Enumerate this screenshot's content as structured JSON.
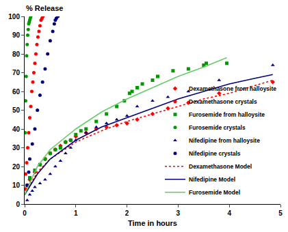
{
  "chart_data": {
    "type": "scatter",
    "xlabel": "Time in hours",
    "ylabel": "% Release",
    "xlim": [
      0,
      5
    ],
    "xticks": [
      0,
      1,
      2,
      3,
      4,
      5
    ],
    "ylim": [
      0,
      100
    ],
    "yticks": [
      0,
      10,
      20,
      30,
      40,
      50,
      60,
      70,
      80,
      90,
      100
    ],
    "grid": false,
    "legend": "lower right",
    "series": [
      {
        "name": "Dexamethasone from halloysite",
        "type": "scatter",
        "color": "#ff0000",
        "marker": "diamond",
        "x": [
          0.02,
          0.05,
          0.1,
          0.2,
          0.3,
          0.4,
          0.5,
          0.6,
          0.7,
          0.8,
          0.9,
          1.0,
          1.2,
          1.4,
          1.6,
          1.8,
          2.0,
          2.2,
          2.5,
          2.8,
          3.2,
          3.8,
          4.85
        ],
        "values": [
          8,
          10,
          13,
          17,
          21,
          24,
          27,
          29,
          31,
          33,
          34,
          36,
          38,
          40,
          41,
          42,
          43,
          45,
          48,
          51,
          54,
          59,
          65
        ]
      },
      {
        "name": "Dexamethasone crystals",
        "type": "scatter",
        "color": "#ff0000",
        "marker": "circle",
        "x": [
          0.02,
          0.04,
          0.06,
          0.08,
          0.1,
          0.12,
          0.14,
          0.16,
          0.18,
          0.2,
          0.22,
          0.24,
          0.26,
          0.28,
          0.3,
          0.32,
          0.34,
          0.36
        ],
        "values": [
          16,
          22,
          30,
          38,
          46,
          52,
          60,
          65,
          70,
          75,
          80,
          85,
          89,
          92,
          95,
          98,
          99,
          100
        ]
      },
      {
        "name": "Furosemide from halloysite",
        "type": "scatter",
        "color": "#009900",
        "marker": "square",
        "x": [
          0.05,
          0.1,
          0.2,
          0.3,
          0.4,
          0.5,
          0.6,
          0.7,
          0.8,
          0.9,
          1.0,
          1.1,
          1.2,
          1.4,
          1.6,
          1.8,
          1.95,
          2.05,
          2.1,
          2.2,
          2.3,
          2.5,
          2.6,
          2.9,
          3.2,
          3.5,
          3.55,
          3.95
        ],
        "values": [
          10,
          14,
          18,
          21,
          24,
          27,
          29,
          30,
          33,
          34,
          37,
          39,
          40,
          44,
          48,
          52,
          55,
          59,
          60,
          62,
          64,
          66,
          68,
          71,
          72,
          74,
          75,
          75
        ]
      },
      {
        "name": "Furosemide crystals",
        "type": "scatter",
        "color": "#009900",
        "marker": "circle",
        "x": [
          0.01,
          0.02,
          0.03,
          0.04,
          0.05,
          0.06,
          0.07,
          0.08,
          0.09,
          0.1,
          0.11,
          0.12
        ],
        "values": [
          38,
          55,
          68,
          79,
          85,
          90,
          93,
          96,
          97,
          98,
          99,
          100
        ]
      },
      {
        "name": "Nifedipine from halloysite",
        "type": "scatter",
        "color": "#000080",
        "marker": "triangle",
        "x": [
          0.05,
          0.1,
          0.15,
          0.2,
          0.3,
          0.4,
          0.5,
          0.6,
          0.7,
          0.8,
          0.9,
          1.0,
          1.2,
          1.4,
          1.6,
          1.8,
          2.0,
          2.2,
          2.5,
          2.8,
          3.2,
          3.8,
          4.85
        ],
        "values": [
          2,
          5,
          7,
          9,
          11,
          13,
          16,
          20,
          23,
          27,
          30,
          34,
          38,
          41,
          43,
          45,
          47,
          52,
          55,
          57,
          60,
          66,
          74
        ]
      },
      {
        "name": "Nifedipine crystals",
        "type": "scatter",
        "color": "#000080",
        "marker": "circle",
        "x": [
          0.05,
          0.08,
          0.1,
          0.15,
          0.2,
          0.25,
          0.3,
          0.35,
          0.4,
          0.45,
          0.5,
          0.55,
          0.58,
          0.6,
          0.62,
          0.65
        ],
        "values": [
          10,
          17,
          24,
          32,
          40,
          50,
          58,
          65,
          72,
          80,
          87,
          92,
          96,
          98,
          99,
          100
        ]
      },
      {
        "name": "Dexamethasone Model",
        "type": "line",
        "color": "#ff0000",
        "line_style": "dot",
        "x": [
          0,
          0.25,
          0.5,
          1,
          1.5,
          2,
          2.5,
          3,
          3.5,
          4,
          4.5,
          4.85
        ],
        "values": [
          5,
          17,
          24,
          33,
          39,
          44,
          48,
          52,
          56,
          59,
          63,
          66
        ]
      },
      {
        "name": "Nifedipine Model",
        "type": "line",
        "color": "#000080",
        "line_style": "solid",
        "x": [
          0,
          0.25,
          0.5,
          1,
          1.5,
          2,
          2.5,
          3,
          3.5,
          4,
          4.5,
          4.85
        ],
        "values": [
          5,
          16,
          24,
          34,
          41,
          46,
          51,
          56,
          60,
          64,
          67,
          69
        ]
      },
      {
        "name": "Furosemide Model",
        "type": "line",
        "color": "#66cc66",
        "line_style": "solid",
        "x": [
          0,
          0.25,
          0.5,
          1,
          1.5,
          2,
          2.5,
          3,
          3.5,
          3.95
        ],
        "values": [
          5,
          20,
          29,
          40,
          49,
          56,
          62,
          68,
          73,
          78
        ]
      }
    ]
  }
}
